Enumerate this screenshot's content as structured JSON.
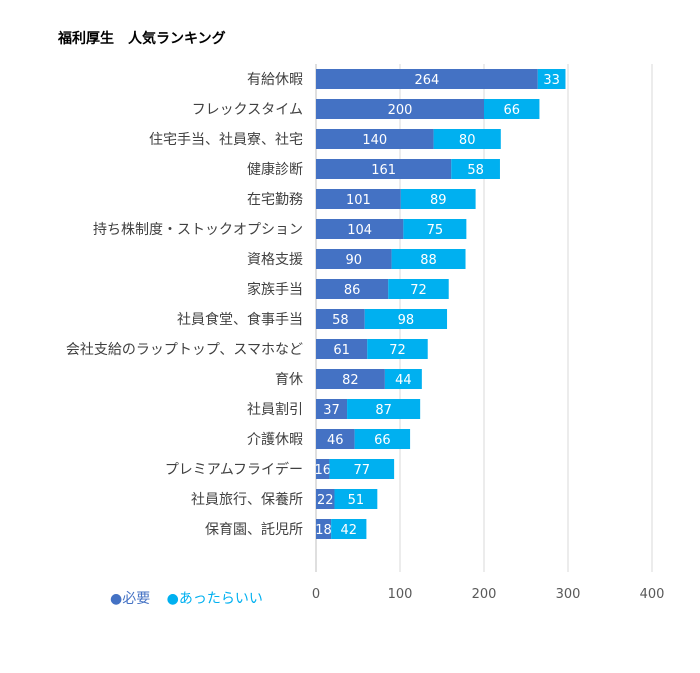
{
  "chart_data": {
    "type": "bar",
    "orientation": "horizontal",
    "stacked": true,
    "title": "福利厚生　人気ランキング",
    "categories": [
      "有給休暇",
      "フレックスタイム",
      "住宅手当、社員寮、社宅",
      "健康診断",
      "在宅勤務",
      "持ち株制度・ストックオプション",
      "資格支援",
      "家族手当",
      "社員食堂、食事手当",
      "会社支給のラップトップ、スマホなど",
      "育休",
      "社員割引",
      "介護休暇",
      "プレミアムフライデー",
      "社員旅行、保養所",
      "保育園、託児所"
    ],
    "series": [
      {
        "name": "必要",
        "color": "#4472C4",
        "values": [
          264,
          200,
          140,
          161,
          101,
          104,
          90,
          86,
          58,
          61,
          82,
          37,
          46,
          16,
          22,
          18
        ]
      },
      {
        "name": "あったらいい",
        "color": "#00B0F0",
        "values": [
          33,
          66,
          80,
          58,
          89,
          75,
          88,
          72,
          98,
          72,
          44,
          87,
          66,
          77,
          51,
          42
        ]
      }
    ],
    "xlim": [
      0,
      400
    ],
    "xticks": [
      "0",
      "100",
      "200",
      "300",
      "400"
    ],
    "grid": true,
    "legend_position": "bottom-left",
    "legend": [
      "●必要",
      "●あったらいい"
    ]
  }
}
